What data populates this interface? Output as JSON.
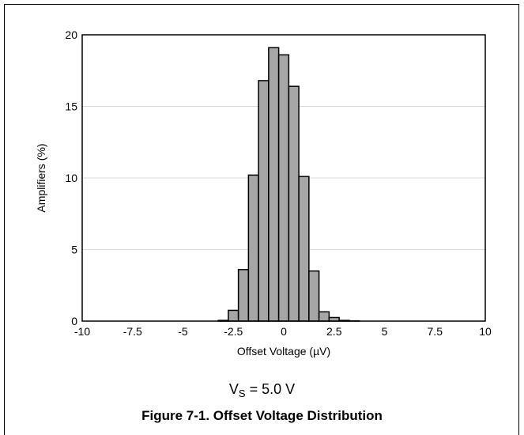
{
  "chart_data": {
    "type": "bar",
    "x_bin_centers": [
      -3,
      -2.5,
      -2,
      -1.5,
      -1,
      -0.5,
      0,
      0.5,
      1,
      1.5,
      2,
      2.5,
      3,
      3.5
    ],
    "values": [
      0.05,
      0.75,
      3.6,
      10.2,
      16.8,
      19.1,
      18.6,
      16.4,
      10.1,
      3.5,
      0.65,
      0.25,
      0.05,
      0.02
    ],
    "bin_width": 0.5,
    "xlabel": "Offset Voltage (µV)",
    "ylabel": "Amplifiers (%)",
    "xlim": [
      -10,
      10
    ],
    "ylim": [
      0,
      20
    ],
    "x_ticks": [
      "-10",
      "-7.5",
      "-5",
      "-2.5",
      "0",
      "2.5",
      "5",
      "7.5",
      "10"
    ],
    "y_ticks": [
      "0",
      "5",
      "10",
      "15",
      "20"
    ],
    "grid": "horizontal",
    "bar_color": "#a6a6a6"
  },
  "condition": {
    "prefix": "V",
    "subscript": "S",
    "text": " = 5.0 V"
  },
  "caption": "Figure 7-1. Offset Voltage Distribution"
}
